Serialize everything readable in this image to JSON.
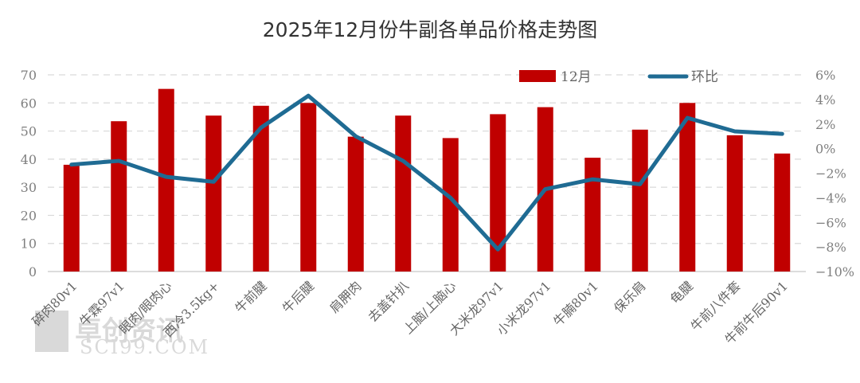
{
  "chart_data": {
    "type": "bar+line",
    "title": "2025年12月份牛副各单品价格走势图",
    "categories": [
      "碎肉80v1",
      "牛霖97v1",
      "眼肉/眼肉心",
      "西冷3.5kg+",
      "牛前腱",
      "牛后腱",
      "肩胛肉",
      "去盖针扒",
      "上脑/上脑心",
      "大米龙97v1",
      "小米龙97v1",
      "牛腩80v1",
      "保乐肩",
      "龟腱",
      "牛前八件套",
      "牛前牛后90v1"
    ],
    "series": [
      {
        "name": "12月",
        "type": "bar",
        "axis": "left",
        "color": "#C00000",
        "values": [
          38,
          53.5,
          65,
          55.5,
          59,
          60,
          48,
          55.5,
          47.5,
          56,
          58.5,
          40.5,
          50.5,
          60,
          48.5,
          42
        ]
      },
      {
        "name": "环比",
        "type": "line",
        "axis": "right",
        "color": "#1F6B93",
        "unit": "%",
        "values": [
          -1.3,
          -1.0,
          -2.3,
          -2.7,
          1.7,
          4.3,
          1.0,
          -1.0,
          -4.0,
          -8.2,
          -3.3,
          -2.5,
          -2.9,
          2.5,
          1.4,
          1.2
        ]
      }
    ],
    "left_axis": {
      "ylim": [
        0,
        70
      ],
      "ticks": [
        "0",
        "10",
        "20",
        "30",
        "40",
        "50",
        "60",
        "70"
      ]
    },
    "right_axis": {
      "ylim": [
        -10,
        6
      ],
      "ticks": [
        "-10%",
        "-8%",
        "-6%",
        "-4%",
        "-2%",
        "0%",
        "2%",
        "4%",
        "6%"
      ]
    },
    "grid": "dashed horizontal",
    "legend_position": "top-right inside plot",
    "xlabel": "",
    "ylabel": ""
  },
  "legend": {
    "bar_label": "12月",
    "line_label": "环比"
  },
  "watermark": {
    "text": "卓创资讯",
    "sub": "SCI99.COM"
  }
}
